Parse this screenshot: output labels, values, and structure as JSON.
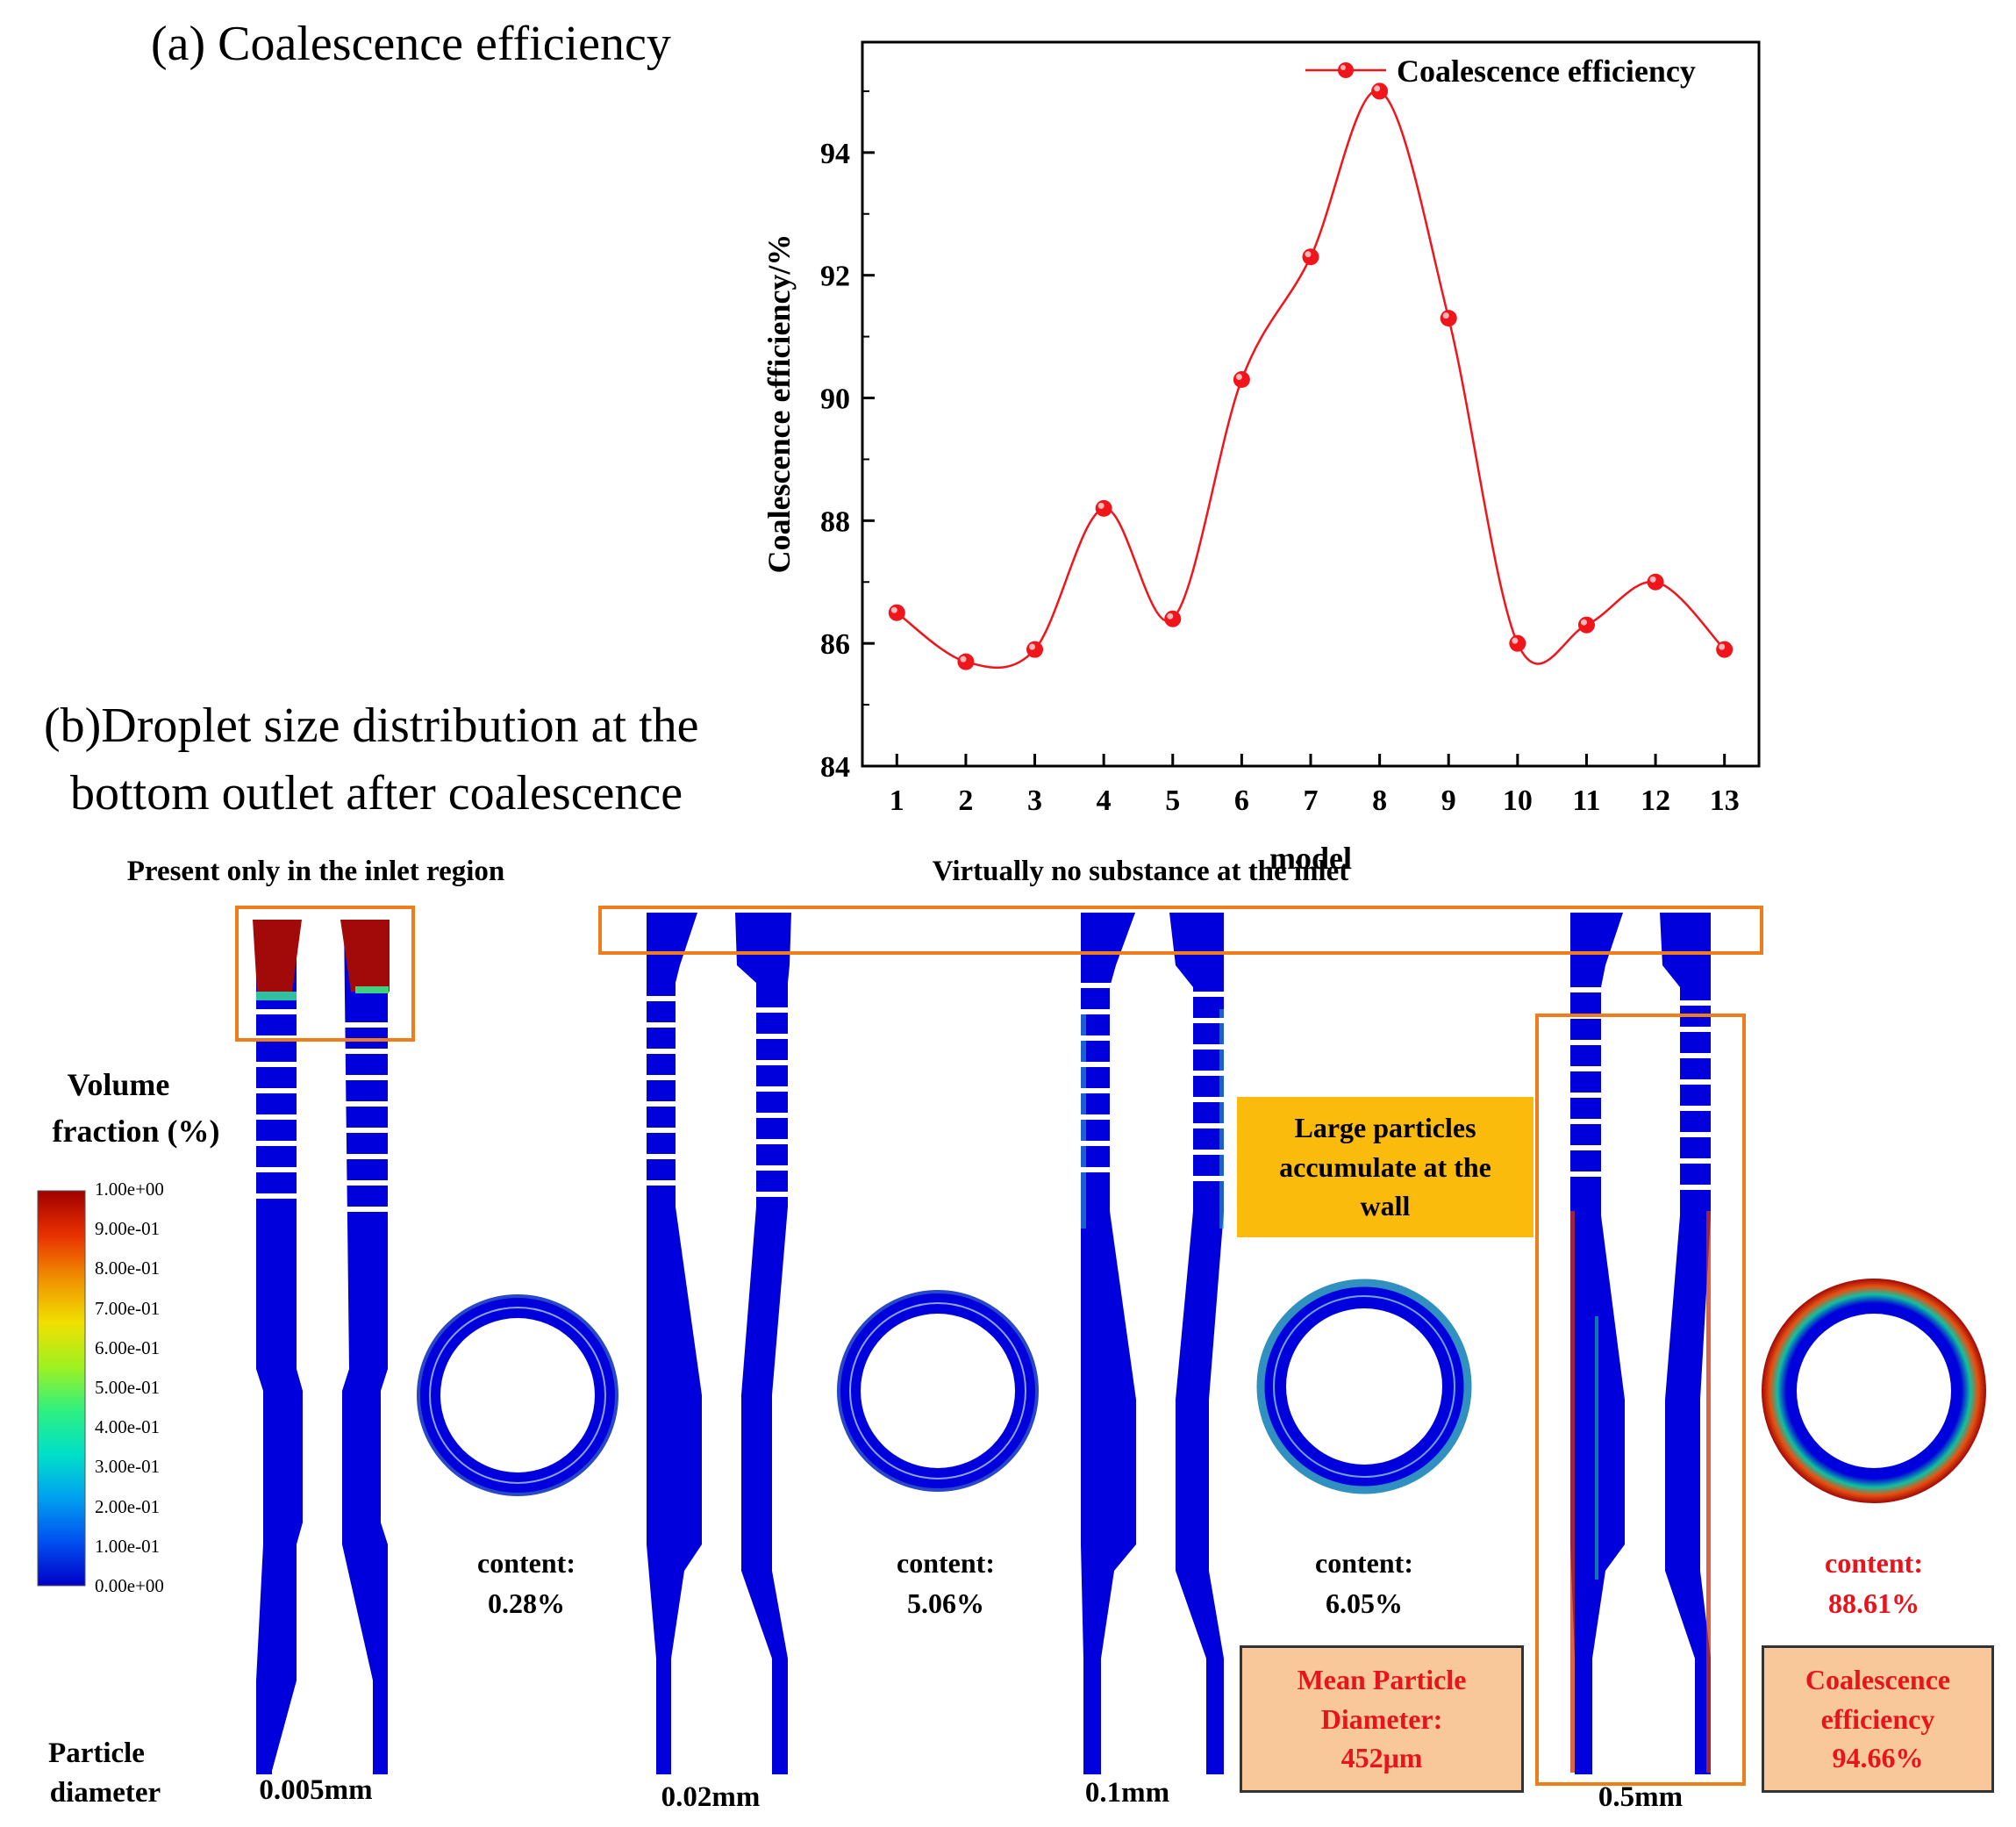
{
  "panel_a_title": "(a) Coalescence efficiency",
  "panel_b_title_line1": "(b)Droplet size distribution at the",
  "panel_b_title_line2": "bottom outlet after coalescence",
  "chart_data": {
    "type": "line",
    "title": "",
    "xlabel": "model",
    "ylabel": "Coalescence efficiency/%",
    "x": [
      1,
      2,
      3,
      4,
      5,
      6,
      7,
      8,
      9,
      10,
      11,
      12,
      13
    ],
    "series": [
      {
        "name": "Coalescence efficiency",
        "values": [
          86.5,
          85.7,
          85.9,
          88.2,
          86.4,
          90.3,
          92.3,
          95.0,
          91.3,
          86.0,
          86.3,
          87.0,
          85.9
        ]
      }
    ],
    "xlim": [
      0.5,
      13.5
    ],
    "ylim": [
      84,
      95.8
    ],
    "x_ticks": [
      "1",
      "2",
      "3",
      "4",
      "5",
      "6",
      "7",
      "8",
      "9",
      "10",
      "11",
      "12",
      "13"
    ],
    "y_ticks": [
      "84",
      "86",
      "88",
      "90",
      "92",
      "94"
    ],
    "legend_position": "top-right",
    "smooth": true,
    "color": "#f0141b",
    "grid": false
  },
  "annotations": {
    "inlet_region": "Present only in the inlet region",
    "no_substance": "Virtually no substance at the inlet",
    "large_particles": "Large particles accumulate at the wall"
  },
  "colorbar": {
    "title_line1": "Volume",
    "title_line2": "fraction (%)",
    "labels": [
      "1.00e+00",
      "9.00e-01",
      "8.00e-01",
      "7.00e-01",
      "6.00e-01",
      "5.00e-01",
      "4.00e-01",
      "3.00e-01",
      "2.00e-01",
      "1.00e-01",
      "0.00e+00"
    ],
    "colors": [
      "#0000c8",
      "#0050f0",
      "#00a0f0",
      "#00e0c8",
      "#30f080",
      "#a0f020",
      "#f0e000",
      "#f09000",
      "#e83000",
      "#a00000"
    ]
  },
  "models": [
    {
      "diameter": "0.005mm",
      "content_label": "content:",
      "content_value": "0.28%"
    },
    {
      "diameter": "0.02mm",
      "content_label": "content:",
      "content_value": "5.06%"
    },
    {
      "diameter": "0.1mm",
      "content_label": "content:",
      "content_value": "6.05%"
    },
    {
      "diameter": "0.5mm",
      "content_label": "content:",
      "content_value": "88.61%"
    }
  ],
  "particle_diameter_label_line1": "Particle",
  "particle_diameter_label_line2": "diameter",
  "mean_particle": {
    "line1": "Mean Particle",
    "line2": "Diameter:",
    "line3": "452μm"
  },
  "coalescence_box": {
    "line1": "Coalescence",
    "line2": "efficiency",
    "line3": "94.66%"
  },
  "colors": {
    "accent_red": "#e8141b",
    "orange": "#f07d1c",
    "gold": "#fbbb0d",
    "peach": "#f8c79a",
    "blue": "#0000dc",
    "dark_red": "#a20a0a"
  }
}
